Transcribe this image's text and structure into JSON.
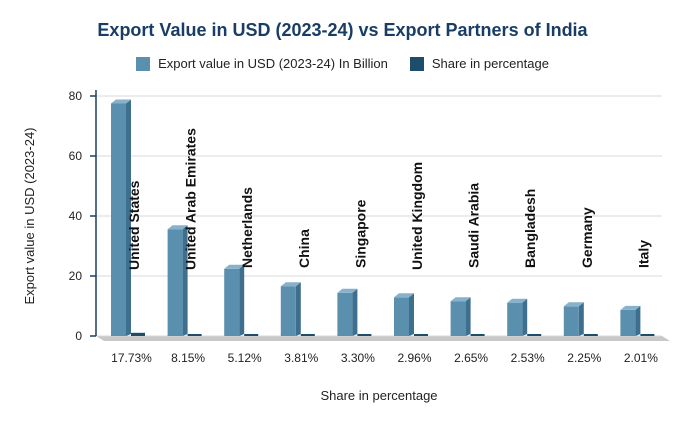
{
  "colors": {
    "title": "#1a3d66",
    "bar_front": "#5b8fae",
    "bar_side": "#3e6f8f",
    "bar_top": "#86b2cb",
    "share_bar": "#1e4d6b",
    "grid": "#d9d9d9",
    "floor": "#c8c8c8",
    "axis": "#1a3d66"
  },
  "chart_data": {
    "type": "bar",
    "title": "Export Value in USD (2023-24) vs Export Partners of India",
    "xlabel": "Share in percentage",
    "ylabel": "Export value in USD (2023-24)",
    "ylim": [
      0,
      80
    ],
    "yticks": [
      0,
      20,
      40,
      60,
      80
    ],
    "grid": true,
    "legend_position": "top",
    "categories": [
      "17.73%",
      "8.15%",
      "5.12%",
      "3.81%",
      "3.30%",
      "2.96%",
      "2.65%",
      "2.53%",
      "2.25%",
      "2.01%"
    ],
    "bar_labels": [
      "United States",
      "United Arab Emirates",
      "Netherlands",
      "China",
      "Singapore",
      "United Kingdom",
      "Saudi Arabia",
      "Bangladesh",
      "Germany",
      "Italy"
    ],
    "series": [
      {
        "name": "Export value in USD (2023-24) In Billion",
        "values": [
          77.5,
          35.6,
          22.4,
          16.6,
          14.4,
          12.9,
          11.6,
          11.1,
          9.9,
          8.7
        ]
      },
      {
        "name": "Share in percentage",
        "values": [
          17.73,
          8.15,
          5.12,
          3.81,
          3.3,
          2.96,
          2.65,
          2.53,
          2.25,
          2.01
        ]
      }
    ]
  }
}
